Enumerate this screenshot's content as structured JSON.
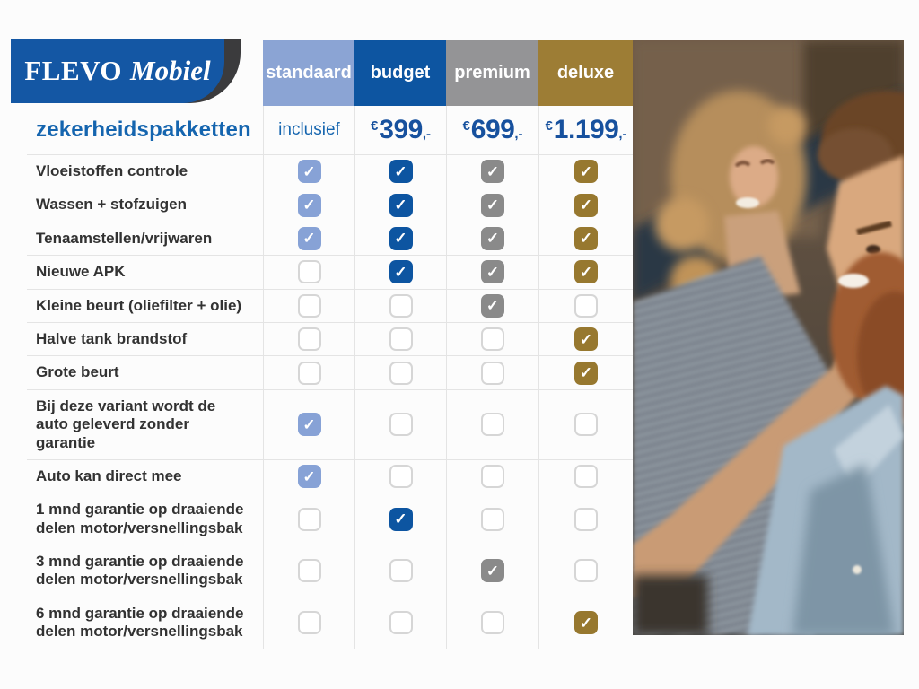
{
  "logo": {
    "brand": "FLEVO",
    "brand_suffix": "Mobiel",
    "plate_color": "#1457a4",
    "swoosh_color": "#3b3b3d"
  },
  "title": "zekerheidspakketten",
  "icons": {
    "check_glyph": "✓"
  },
  "packages": [
    {
      "id": "standaard",
      "label": "standaard",
      "header_color": "#8ba4d4",
      "check_color": "#87a2d6",
      "price_text": "inclusief"
    },
    {
      "id": "budget",
      "label": "budget",
      "header_color": "#0d55a1",
      "check_color": "#0d55a1",
      "currency": "€",
      "amount": "399",
      "amount_suffix": ",-"
    },
    {
      "id": "premium",
      "label": "premium",
      "header_color": "#949496",
      "check_color": "#8a8a8a",
      "currency": "€",
      "amount": "699",
      "amount_suffix": ",-"
    },
    {
      "id": "deluxe",
      "label": "deluxe",
      "header_color": "#9d7d35",
      "check_color": "#97782f",
      "currency": "€",
      "amount": "1.199",
      "amount_suffix": ",-"
    }
  ],
  "features": [
    {
      "label": "Vloeistoffen controle",
      "checks": [
        true,
        true,
        true,
        true
      ]
    },
    {
      "label": "Wassen + stofzuigen",
      "checks": [
        true,
        true,
        true,
        true
      ]
    },
    {
      "label": "Tenaamstellen/vrijwaren",
      "checks": [
        true,
        true,
        true,
        true
      ]
    },
    {
      "label": "Nieuwe APK",
      "checks": [
        false,
        true,
        true,
        true
      ]
    },
    {
      "label": "Kleine beurt (oliefilter + olie)",
      "checks": [
        false,
        false,
        true,
        false
      ]
    },
    {
      "label": "Halve tank brandstof",
      "checks": [
        false,
        false,
        false,
        true
      ]
    },
    {
      "label": "Grote beurt",
      "checks": [
        false,
        false,
        false,
        true
      ]
    },
    {
      "label": "Bij deze variant wordt de auto geleverd zonder garantie",
      "checks": [
        true,
        false,
        false,
        false
      ]
    },
    {
      "label": "Auto kan direct mee",
      "checks": [
        true,
        false,
        false,
        false
      ]
    },
    {
      "label": "1 mnd garantie op draaiende delen motor/versnellingsbak",
      "checks": [
        false,
        true,
        false,
        false
      ]
    },
    {
      "label": "3 mnd garantie op draaiende delen motor/versnellingsbak",
      "checks": [
        false,
        false,
        true,
        false
      ]
    },
    {
      "label": "6 mnd garantie op draaiende delen motor/versnellingsbak",
      "checks": [
        false,
        false,
        false,
        true
      ]
    }
  ],
  "photo": {
    "description": "Smiling couple sitting together in a car"
  }
}
